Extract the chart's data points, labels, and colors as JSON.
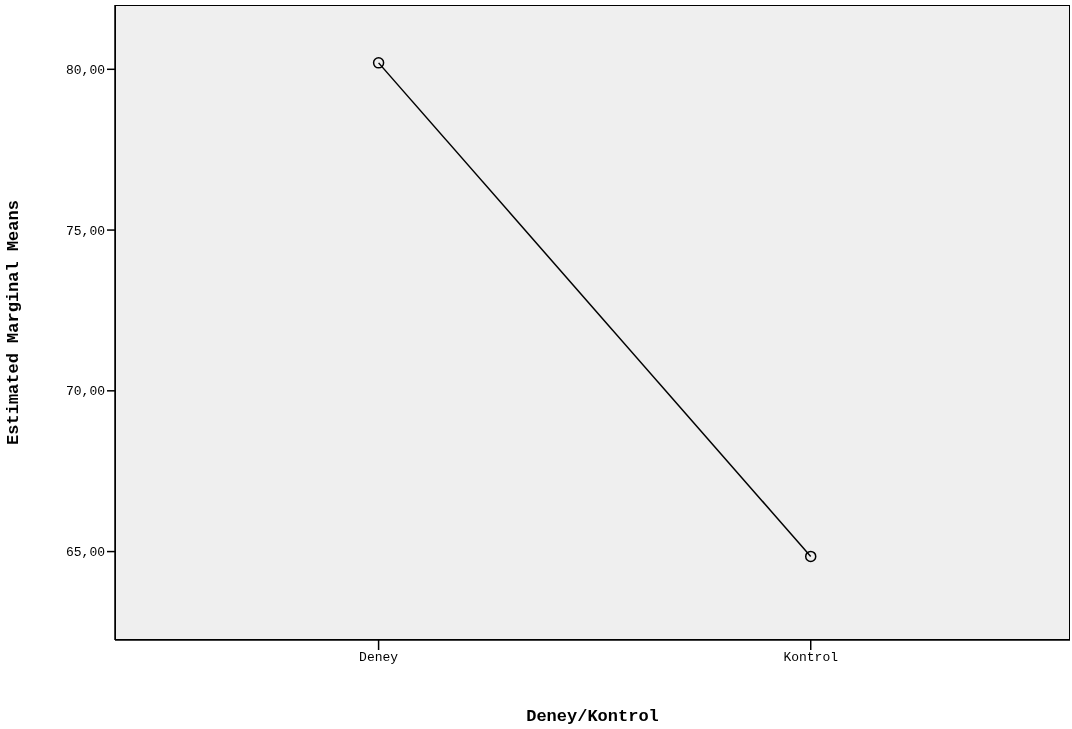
{
  "chart_data": {
    "type": "line",
    "xlabel": "Deney/Kontrol",
    "ylabel": "Estimated Marginal Means",
    "categories": [
      "Deney",
      "Kontrol"
    ],
    "series": [
      {
        "color": "#000000",
        "values": [
          80.2,
          64.85
        ]
      }
    ],
    "ylim": [
      62.25,
      82
    ],
    "yticks": [
      {
        "value": 65,
        "label": "65,00"
      },
      {
        "value": 70,
        "label": "70,00"
      },
      {
        "value": 75,
        "label": "75,00"
      },
      {
        "value": 80,
        "label": "80,00"
      }
    ],
    "marker": "circle",
    "line_style": "solid"
  }
}
